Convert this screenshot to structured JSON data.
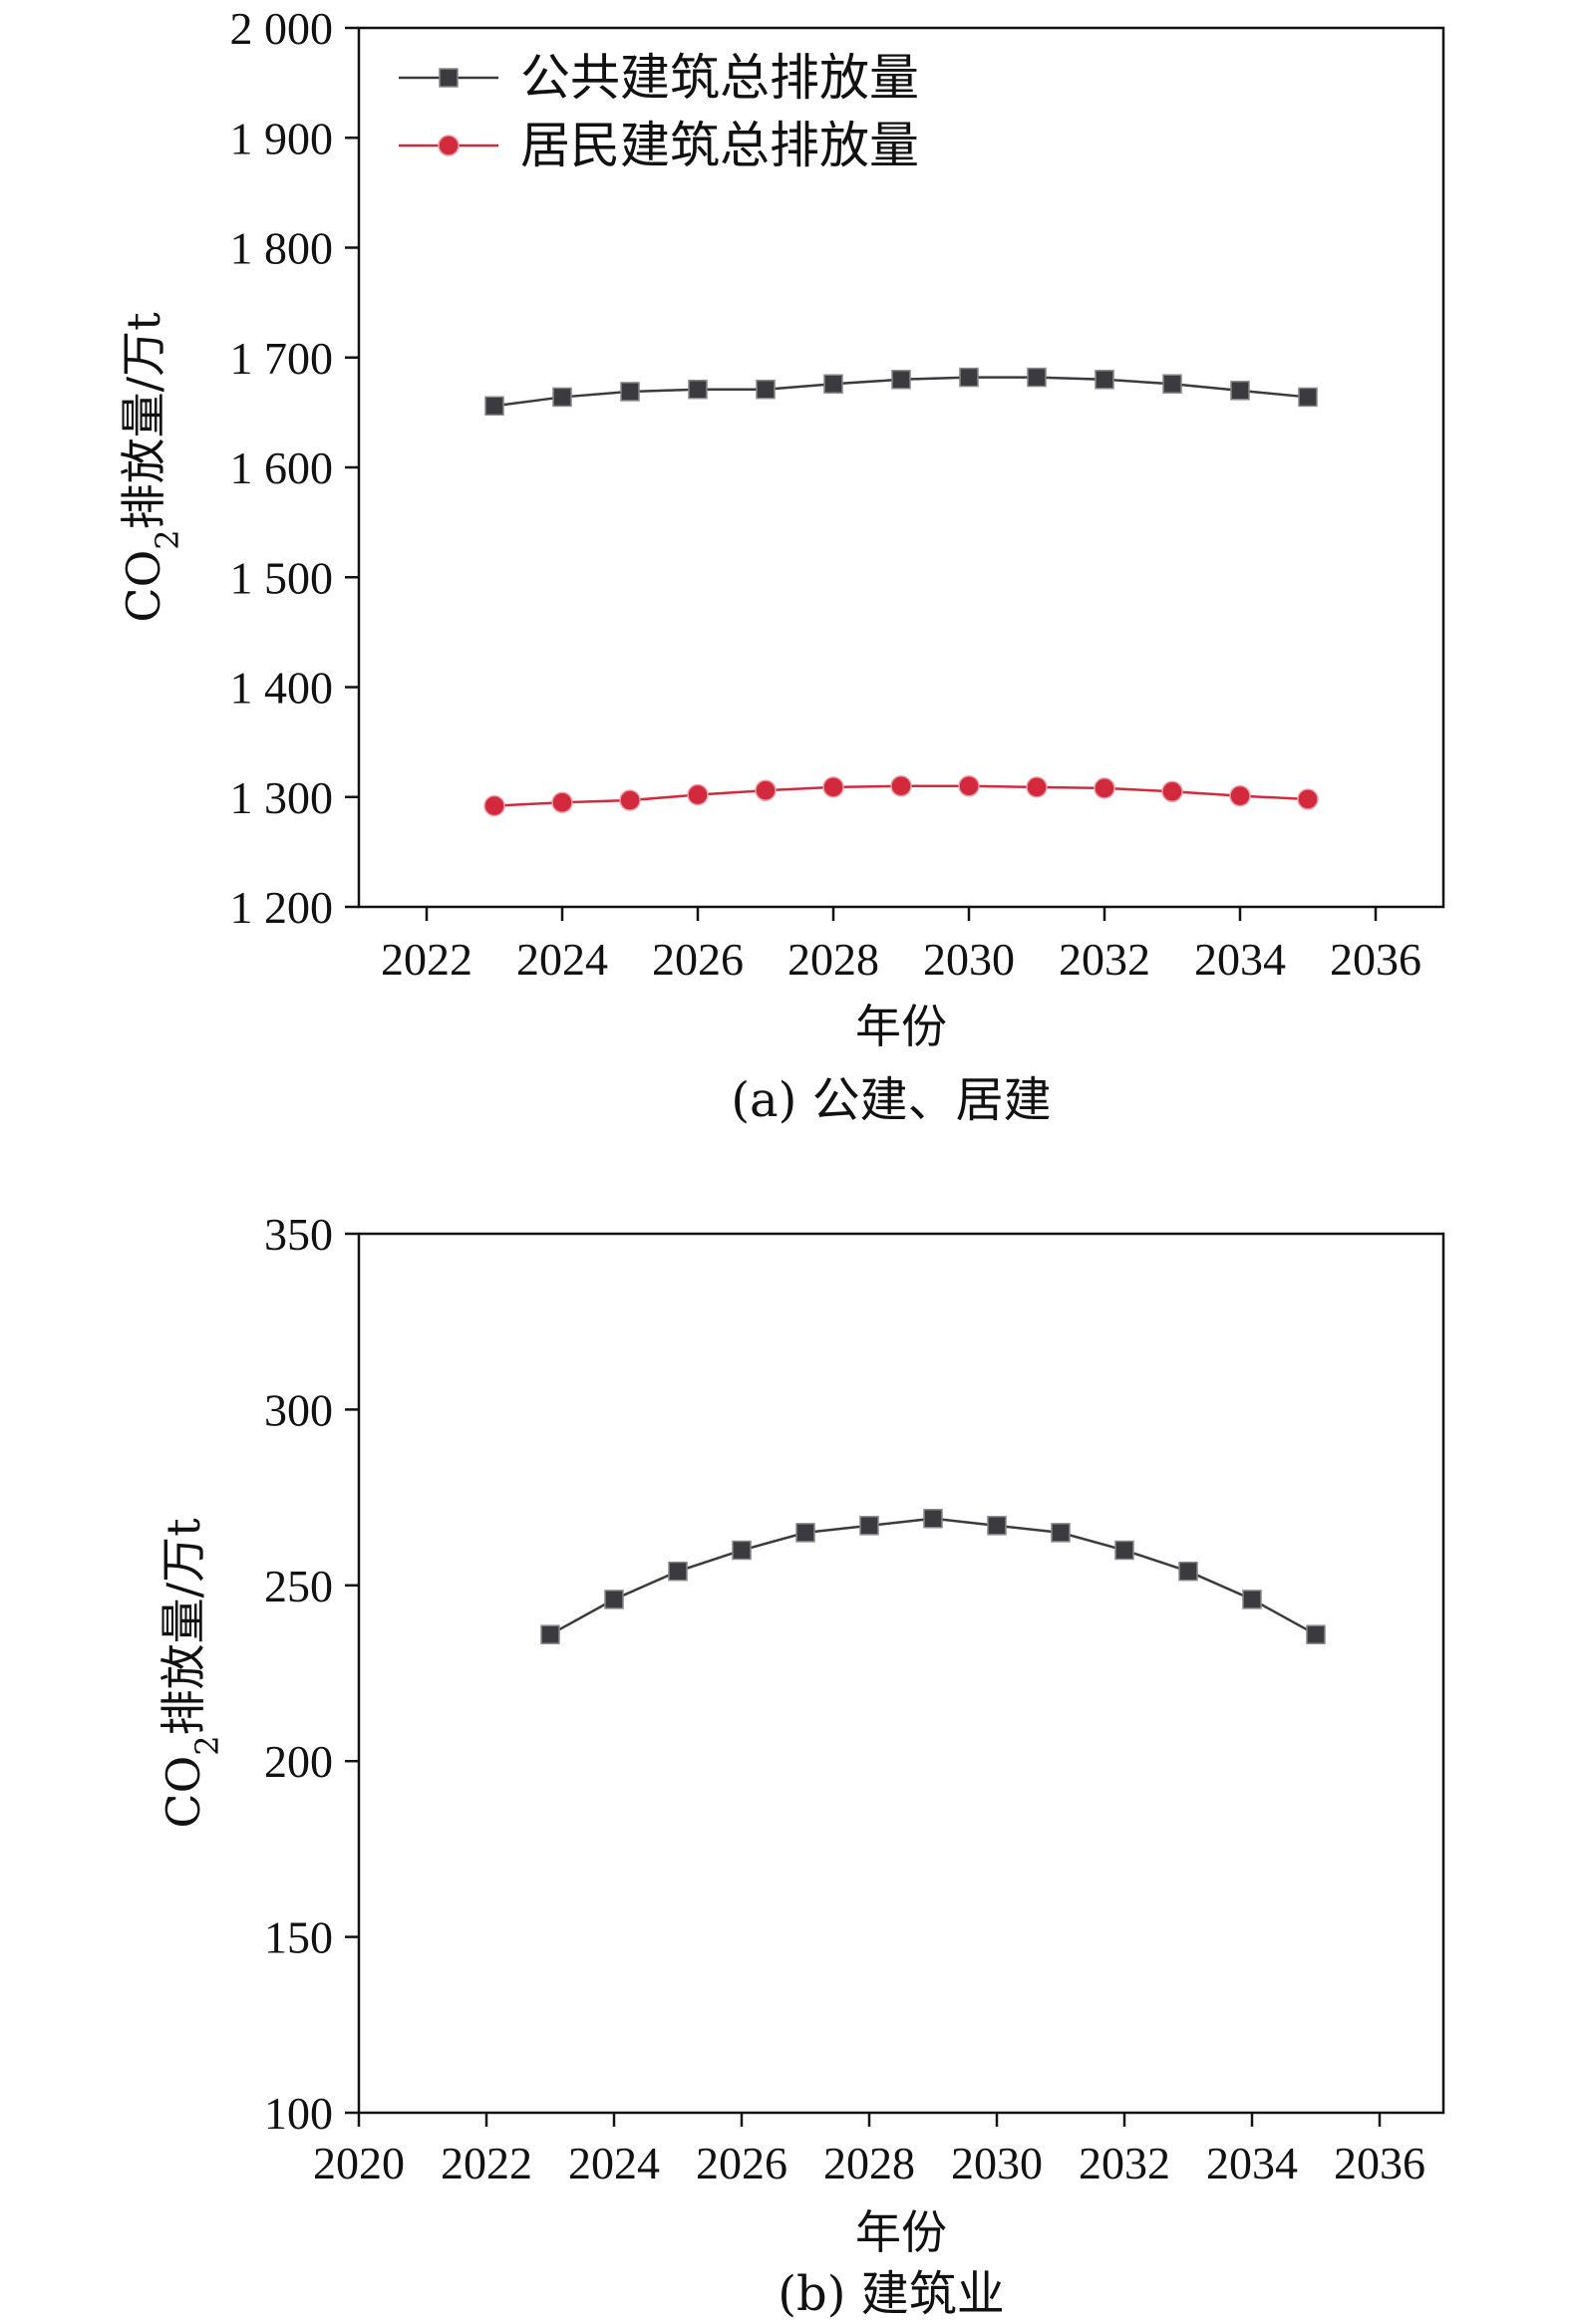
{
  "chart_data": [
    {
      "type": "line",
      "caption": "(a) 公建、居建",
      "xlabel": "年份",
      "ylabel_main": "CO",
      "ylabel_sub": "2",
      "ylabel_rest": "排放量/万t",
      "xlim": [
        2021,
        2037
      ],
      "ylim": [
        1200,
        2000
      ],
      "xticks": [
        2022,
        2024,
        2026,
        2028,
        2030,
        2032,
        2034,
        2036
      ],
      "xtick_labels": [
        "2022",
        "2024",
        "2026",
        "2028",
        "2030",
        "2032",
        "2034",
        "2036"
      ],
      "yticks": [
        1200,
        1300,
        1400,
        1500,
        1600,
        1700,
        1800,
        1900,
        2000
      ],
      "ytick_labels": [
        "1 200",
        "1 300",
        "1 400",
        "1 500",
        "1 600",
        "1 700",
        "1 800",
        "1 900",
        "2 000"
      ],
      "legend_position": "top-left",
      "grid": false,
      "x": [
        2023,
        2024,
        2025,
        2026,
        2027,
        2028,
        2029,
        2030,
        2031,
        2032,
        2033,
        2034,
        2035
      ],
      "series": [
        {
          "name": "公共建筑总排放量",
          "marker": "square",
          "color": "#3a3a3f",
          "values": [
            1656,
            1664,
            1669,
            1671,
            1671,
            1676,
            1680,
            1682,
            1682,
            1680,
            1676,
            1670,
            1664
          ]
        },
        {
          "name": "居民建筑总排放量",
          "marker": "circle",
          "color": "#d22a3c",
          "values": [
            1292,
            1295,
            1297,
            1302,
            1306,
            1309,
            1310,
            1310,
            1309,
            1308,
            1305,
            1301,
            1298
          ]
        }
      ]
    },
    {
      "type": "line",
      "caption": "(b) 建筑业",
      "xlabel": "年份",
      "ylabel_main": "CO",
      "ylabel_sub": "2",
      "ylabel_rest": "排放量/万t",
      "xlim": [
        2020,
        2037
      ],
      "ylim": [
        100,
        350
      ],
      "xticks": [
        2020,
        2022,
        2024,
        2026,
        2028,
        2030,
        2032,
        2034,
        2036
      ],
      "xtick_labels": [
        "2020",
        "2022",
        "2024",
        "2026",
        "2028",
        "2030",
        "2032",
        "2034",
        "2036"
      ],
      "yticks": [
        100,
        150,
        200,
        250,
        300,
        350
      ],
      "ytick_labels": [
        "100",
        "150",
        "200",
        "250",
        "300",
        "350"
      ],
      "grid": false,
      "x": [
        2023,
        2024,
        2025,
        2026,
        2027,
        2028,
        2029,
        2030,
        2031,
        2032,
        2033,
        2034,
        2035
      ],
      "series": [
        {
          "marker": "square",
          "color": "#3a3a3f",
          "values": [
            236,
            246,
            254,
            260,
            265,
            267,
            269,
            267,
            265,
            260,
            254,
            246,
            236
          ]
        }
      ]
    }
  ]
}
